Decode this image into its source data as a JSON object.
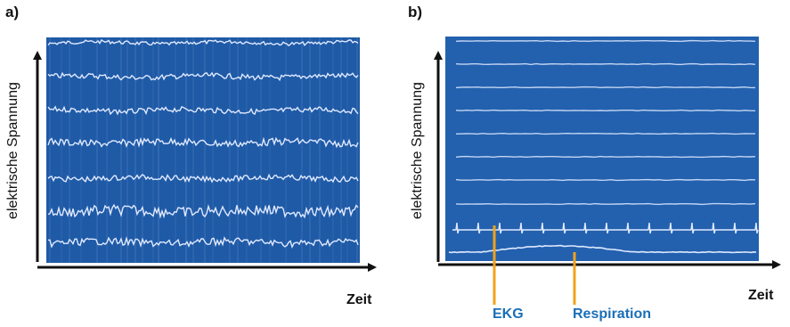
{
  "panels": [
    {
      "label": "a)",
      "ylabel": "elektrische Spannung",
      "xlabel": "Zeit"
    },
    {
      "label": "b)",
      "ylabel": "elektrische Spannung",
      "xlabel": "Zeit",
      "annotations": [
        "EKG",
        "Respiration"
      ]
    }
  ],
  "colors": {
    "recording_bg": "#1f5aa6",
    "trace": "#dfe9ff",
    "annotation": "#f2a21a",
    "annotation_text": "#1a6fb8",
    "axis": "#111111"
  }
}
